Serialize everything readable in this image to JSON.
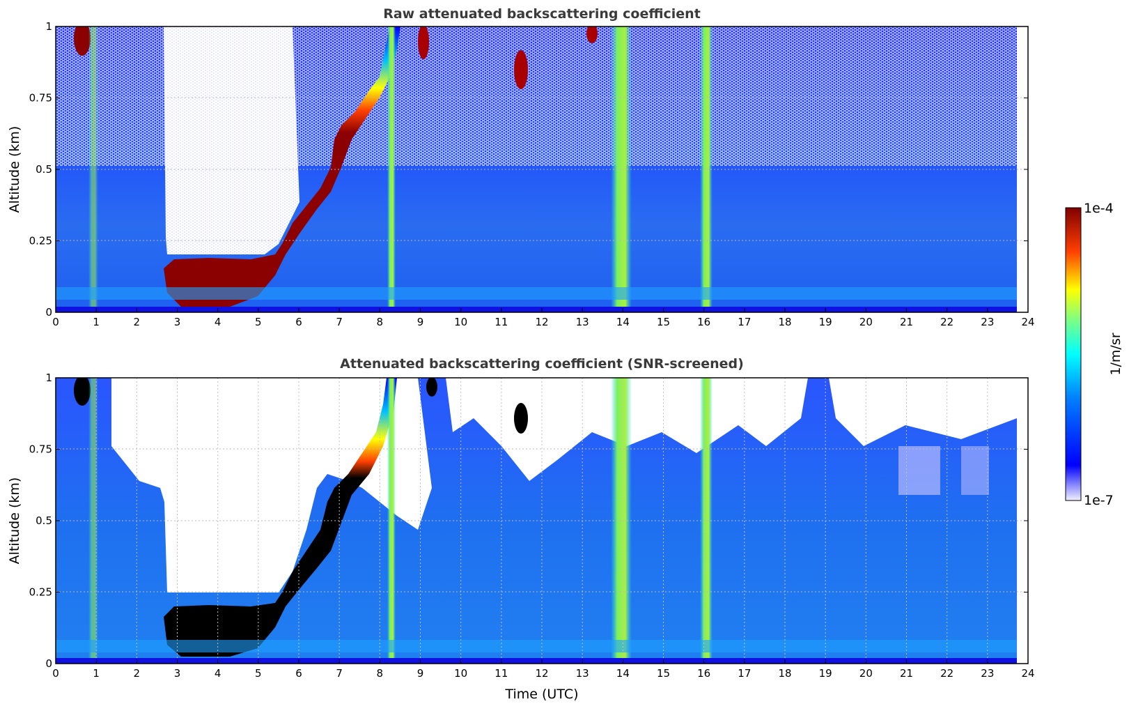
{
  "chart_data": [
    {
      "type": "heatmap",
      "title": "Raw attenuated backscattering coefficient",
      "xlabel": "",
      "ylabel": "Altitude (km)",
      "xlim": [
        0,
        24
      ],
      "ylim": [
        0,
        1
      ],
      "x_ticks": [
        "0",
        "1",
        "2",
        "3",
        "4",
        "5",
        "6",
        "7",
        "8",
        "9",
        "10",
        "11",
        "12",
        "13",
        "14",
        "15",
        "16",
        "17",
        "18",
        "19",
        "20",
        "21",
        "22",
        "23",
        "24"
      ],
      "y_ticks": [
        "0",
        "0.25",
        "0.5",
        "0.75",
        "1"
      ],
      "grid": true,
      "features": {
        "low_cloud_base": [
          {
            "t": 2.7,
            "top": 0.14
          },
          {
            "t": 3.0,
            "top": 0.12
          },
          {
            "t": 4.0,
            "top": 0.12
          },
          {
            "t": 5.0,
            "top": 0.13
          },
          {
            "t": 5.5,
            "top": 0.18
          },
          {
            "t": 6.0,
            "top": 0.26
          },
          {
            "t": 6.5,
            "top": 0.35
          },
          {
            "t": 7.0,
            "top": 0.5
          },
          {
            "t": 7.5,
            "top": 0.62
          },
          {
            "t": 8.0,
            "top": 0.75
          },
          {
            "t": 8.4,
            "top": 0.9
          }
        ],
        "vertical_bands": [
          {
            "t": 0.95,
            "level": "medium"
          },
          {
            "t": 8.45,
            "level": "medium"
          },
          {
            "t": 14.2,
            "level": "high"
          },
          {
            "t": 16.4,
            "level": "high"
          }
        ],
        "clear_region": {
          "t_start": 2.7,
          "t_end": 6.0,
          "above_km": 0.2
        }
      }
    },
    {
      "type": "heatmap",
      "title": "Attenuated backscattering coefficient (SNR-screened)",
      "xlabel": "Time (UTC)",
      "ylabel": "Altitude (km)",
      "xlim": [
        0,
        24
      ],
      "ylim": [
        0,
        1
      ],
      "x_ticks": [
        "0",
        "1",
        "2",
        "3",
        "4",
        "5",
        "6",
        "7",
        "8",
        "9",
        "10",
        "11",
        "12",
        "13",
        "14",
        "15",
        "16",
        "17",
        "18",
        "19",
        "20",
        "21",
        "22",
        "23",
        "24"
      ],
      "y_ticks": [
        "0",
        "0.25",
        "0.5",
        "0.75",
        "1"
      ],
      "grid": true,
      "saturated_color": "#000000"
    }
  ],
  "colorbar": {
    "label": "1/m/sr",
    "max_label": "1e-4",
    "min_label": "1e-7",
    "colormap": "jet",
    "scale": "log",
    "range": [
      1e-07,
      0.0001
    ]
  }
}
